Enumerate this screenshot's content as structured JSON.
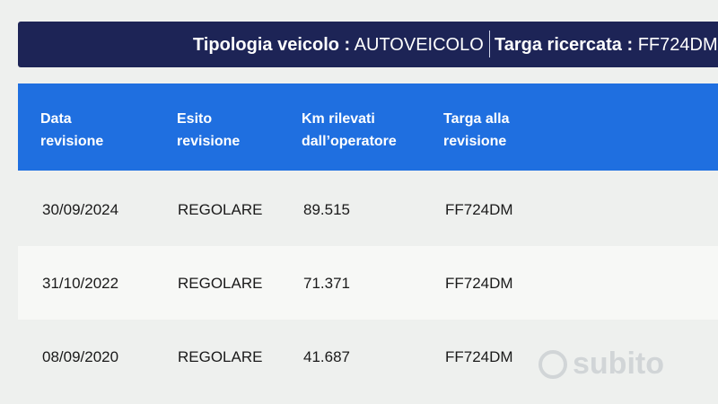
{
  "header": {
    "vehicle_type_label": "Tipologia veicolo :",
    "vehicle_type_value": "AUTOVEICOLO",
    "plate_label": "Targa ricercata :",
    "plate_value": "FF724DM"
  },
  "table": {
    "columns": [
      {
        "line1": "Data",
        "line2": "revisione"
      },
      {
        "line1": "Esito",
        "line2": "revisione"
      },
      {
        "line1": "Km rilevati",
        "line2": "dall’operatore"
      },
      {
        "line1": "Targa alla",
        "line2": "revisione"
      }
    ],
    "rows": [
      [
        "30/09/2024",
        "REGOLARE",
        "89.515",
        "FF724DM"
      ],
      [
        "31/10/2022",
        "REGOLARE",
        "71.371",
        "FF724DM"
      ],
      [
        "08/09/2020",
        "REGOLARE",
        "41.687",
        "FF724DM"
      ]
    ]
  },
  "watermark": {
    "text": "subito"
  },
  "colors": {
    "header_bar": "#1d2456",
    "table_header": "#1f6fe0"
  }
}
